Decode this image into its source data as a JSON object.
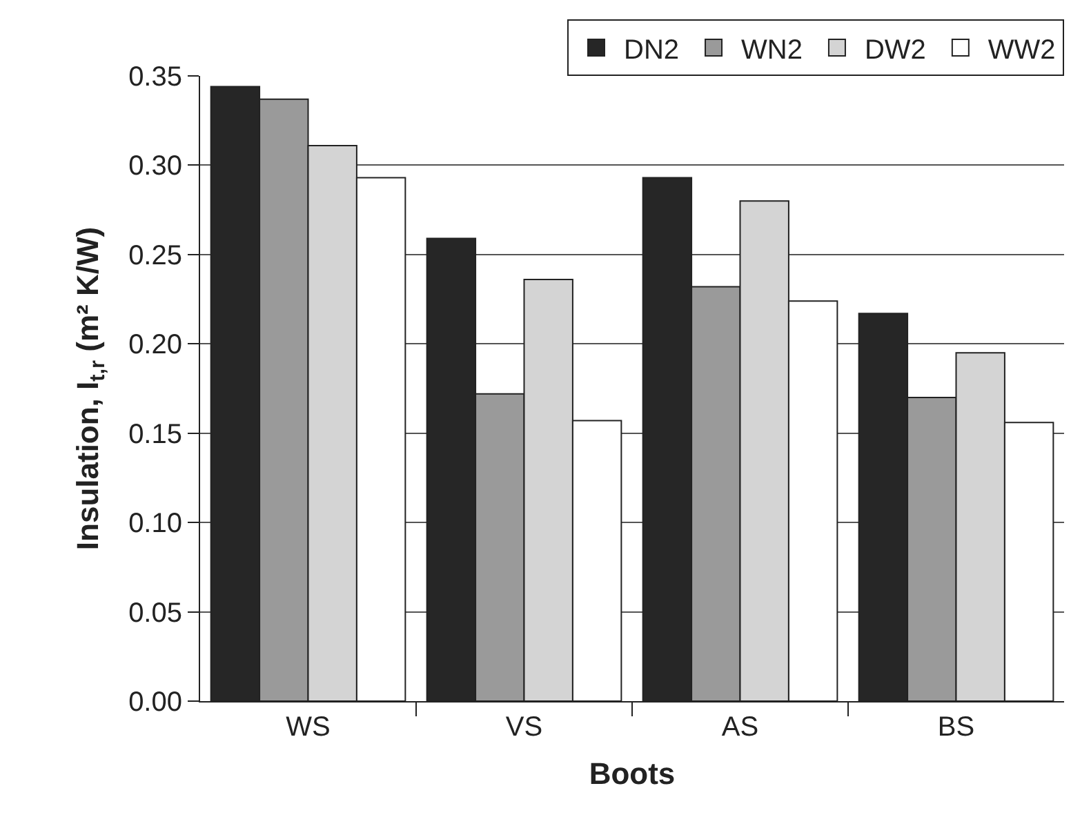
{
  "chart_data": {
    "type": "bar",
    "xlabel": "Boots",
    "ylabel": "Insulation, I$_{t,r}$ (m² K/W)",
    "categories": [
      "WS",
      "VS",
      "AS",
      "BS"
    ],
    "series": [
      {
        "name": "DN2",
        "color": "#262626",
        "values": [
          0.344,
          0.259,
          0.293,
          0.217
        ]
      },
      {
        "name": "WN2",
        "color": "#9a9a9a",
        "values": [
          0.337,
          0.172,
          0.232,
          0.17
        ]
      },
      {
        "name": "DW2",
        "color": "#d4d4d4",
        "values": [
          0.311,
          0.236,
          0.28,
          0.195
        ]
      },
      {
        "name": "WW2",
        "color": "#ffffff",
        "values": [
          0.293,
          0.157,
          0.224,
          0.156
        ]
      }
    ],
    "ylim": [
      0,
      0.35
    ],
    "yticks": [
      {
        "value": 0,
        "label": "0.00"
      },
      {
        "value": 0.05,
        "label": "0.05"
      },
      {
        "value": 0.1,
        "label": "0.10"
      },
      {
        "value": 0.15,
        "label": "0.15"
      },
      {
        "value": 0.2,
        "label": "0.20"
      },
      {
        "value": 0.25,
        "label": "0.25"
      },
      {
        "value": 0.3,
        "label": "0.30"
      },
      {
        "value": 0.35,
        "label": "0.35"
      }
    ],
    "grid": "y",
    "legend": "top right"
  }
}
